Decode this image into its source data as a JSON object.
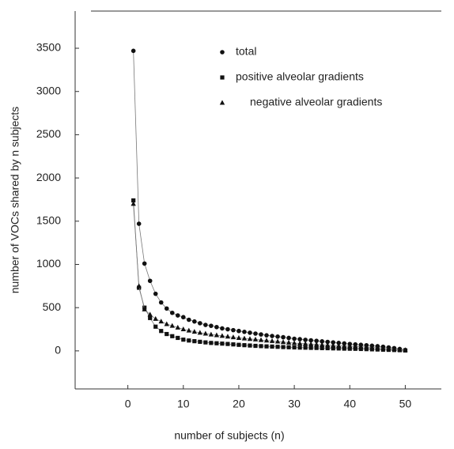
{
  "chart_data": {
    "type": "line",
    "xlabel": "number of subjects (n)",
    "ylabel": "number of VOCs shared by n subjects",
    "x": [
      1,
      2,
      3,
      4,
      5,
      6,
      7,
      8,
      9,
      10,
      11,
      12,
      13,
      14,
      15,
      16,
      17,
      18,
      19,
      20,
      21,
      22,
      23,
      24,
      25,
      26,
      27,
      28,
      29,
      30,
      31,
      32,
      33,
      34,
      35,
      36,
      37,
      38,
      39,
      40,
      41,
      42,
      43,
      44,
      45,
      46,
      47,
      48,
      49,
      50
    ],
    "series": [
      {
        "name": "total",
        "marker": "circle",
        "color": "#111111",
        "values": [
          3470,
          1470,
          1010,
          810,
          660,
          560,
          490,
          440,
          410,
          390,
          360,
          340,
          320,
          300,
          290,
          275,
          260,
          250,
          240,
          230,
          220,
          210,
          200,
          190,
          180,
          172,
          165,
          158,
          150,
          140,
          135,
          128,
          122,
          116,
          110,
          104,
          98,
          92,
          86,
          80,
          75,
          70,
          65,
          60,
          54,
          48,
          40,
          32,
          22,
          10
        ]
      },
      {
        "name": "positive alveolar gradients",
        "marker": "square",
        "color": "#111111",
        "values": [
          1740,
          730,
          500,
          380,
          280,
          230,
          195,
          170,
          150,
          130,
          120,
          112,
          105,
          98,
          92,
          88,
          84,
          80,
          75,
          70,
          66,
          62,
          58,
          55,
          52,
          50,
          47,
          44,
          42,
          40,
          38,
          37,
          35,
          34,
          32,
          31,
          29,
          28,
          26,
          25,
          24,
          22,
          20,
          18,
          16,
          14,
          12,
          10,
          8,
          5
        ]
      },
      {
        "name": "negative alveolar gradients",
        "marker": "triangle",
        "color": "#111111",
        "values": [
          1700,
          750,
          480,
          420,
          370,
          340,
          310,
          290,
          270,
          250,
          235,
          222,
          210,
          200,
          190,
          182,
          174,
          166,
          158,
          150,
          144,
          138,
          132,
          126,
          120,
          114,
          108,
          102,
          96,
          90,
          86,
          82,
          78,
          74,
          70,
          66,
          62,
          58,
          56,
          55,
          52,
          48,
          44,
          40,
          36,
          32,
          28,
          22,
          16,
          10
        ]
      }
    ],
    "xlim": [
      -9.5,
      56.5
    ],
    "xticks": [
      0,
      10,
      20,
      30,
      40,
      50
    ],
    "ylim": [
      -440,
      3930
    ],
    "yticks": [
      0,
      500,
      1000,
      1500,
      2000,
      2500,
      3000,
      3500
    ]
  }
}
